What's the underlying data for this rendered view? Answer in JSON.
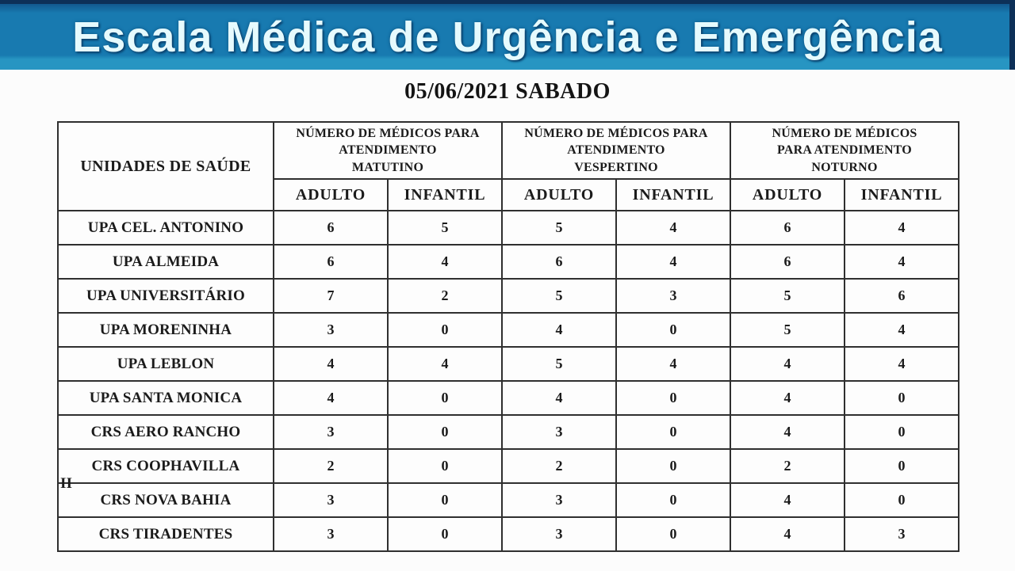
{
  "banner": {
    "title": "Escala Médica de Urgência e Emergência",
    "bg_color": "#187ab0",
    "bottom_strip_color": "#2795c2",
    "top_edge_color": "#0d3058",
    "text_color": "#e6fafd"
  },
  "date_heading": "05/06/2021 SABADO",
  "table": {
    "unit_column_header": "UNIDADES DE SAÚDE",
    "group_headers": [
      "NÚMERO DE MÉDICOS PARA\nATENDIMENTO\nMATUTINO",
      "NÚMERO DE MÉDICOS PARA\nATENDIMENTO\nVESPERTINO",
      "NÚMERO DE MÉDICOS\nPARA ATENDIMENTO\nNOTURNO"
    ],
    "sub_headers": [
      "ADULTO",
      "INFANTIL",
      "ADULTO",
      "INFANTIL",
      "ADULTO",
      "INFANTIL"
    ],
    "rows": [
      {
        "name": "UPA CEL. ANTONINO",
        "values": [
          6,
          5,
          5,
          4,
          6,
          4
        ]
      },
      {
        "name": "UPA ALMEIDA",
        "values": [
          6,
          4,
          6,
          4,
          6,
          4
        ]
      },
      {
        "name": "UPA UNIVERSITÁRIO",
        "values": [
          7,
          2,
          5,
          3,
          5,
          6
        ]
      },
      {
        "name": "UPA MORENINHA",
        "values": [
          3,
          0,
          4,
          0,
          5,
          4
        ]
      },
      {
        "name": "UPA LEBLON",
        "values": [
          4,
          4,
          5,
          4,
          4,
          4
        ]
      },
      {
        "name": "UPA SANTA MONICA",
        "values": [
          4,
          0,
          4,
          0,
          4,
          0
        ]
      },
      {
        "name": "CRS AERO RANCHO",
        "values": [
          3,
          0,
          3,
          0,
          4,
          0
        ]
      },
      {
        "name": "CRS COOPHAVILLA",
        "name_overflow": "II",
        "values": [
          2,
          0,
          2,
          0,
          2,
          0
        ]
      },
      {
        "name": "CRS NOVA BAHIA",
        "values": [
          3,
          0,
          3,
          0,
          4,
          0
        ]
      },
      {
        "name": "CRS TIRADENTES",
        "values": [
          3,
          0,
          3,
          0,
          4,
          3
        ]
      }
    ]
  }
}
